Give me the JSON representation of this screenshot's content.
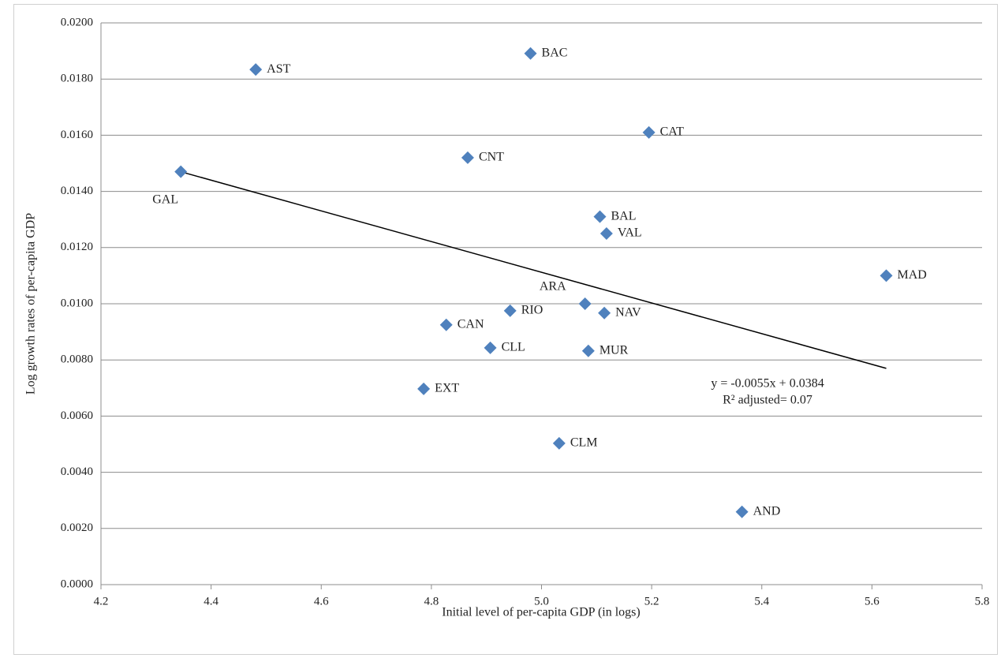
{
  "chart_data": {
    "type": "scatter",
    "x_label": "Initial level of per-capita GDP (in logs)",
    "y_label": "Log growth rates of per-capita GDP",
    "categories": [
      "AST",
      "BAC",
      "CAT",
      "CNT",
      "GAL",
      "BAL",
      "VAL",
      "MAD",
      "ARA",
      "RIO",
      "NAV",
      "CAN",
      "CLL",
      "MUR",
      "EXT",
      "CLM",
      "AND"
    ],
    "x": [
      4.481,
      4.98,
      5.195,
      4.866,
      4.345,
      5.106,
      5.118,
      5.626,
      5.079,
      4.943,
      5.114,
      4.827,
      4.907,
      5.085,
      4.786,
      5.032,
      5.364
    ],
    "values": [
      0.01834,
      0.01891,
      0.0161,
      0.0152,
      0.0147,
      0.0131,
      0.0125,
      0.011,
      0.01,
      0.00975,
      0.00967,
      0.00925,
      0.00843,
      0.00832,
      0.00697,
      0.00503,
      0.00259
    ],
    "color": "#4f81bd",
    "trendline": {
      "x": [
        4.345,
        5.626
      ],
      "y": [
        0.0147,
        0.0077
      ]
    },
    "annotations": [
      "y = -0.0055x + 0.0384",
      "R² adjusted= 0.07"
    ],
    "xlim": [
      4.2,
      5.8
    ],
    "xticks": [
      4.2,
      4.4,
      4.6,
      4.8,
      {
        "value": 5.0,
        "label": "5.0"
      },
      5.2,
      5.4,
      5.6,
      5.8
    ],
    "ylim": [
      0,
      0.02
    ],
    "yticks": [
      {
        "value": 0,
        "label": "0.0000"
      },
      {
        "value": 0.002,
        "label": "0.0020"
      },
      {
        "value": 0.004,
        "label": "0.0040"
      },
      {
        "value": 0.006,
        "label": "0.0060"
      },
      {
        "value": 0.008,
        "label": "0.0080"
      },
      {
        "value": 0.01,
        "label": "0.0100"
      },
      {
        "value": 0.012,
        "label": "0.0120"
      },
      {
        "value": 0.014,
        "label": "0.0140"
      },
      {
        "value": 0.016,
        "label": "0.0160"
      },
      {
        "value": 0.018,
        "label": "0.0180"
      },
      {
        "value": 0.02,
        "label": "0.0200"
      }
    ],
    "grid": true
  }
}
